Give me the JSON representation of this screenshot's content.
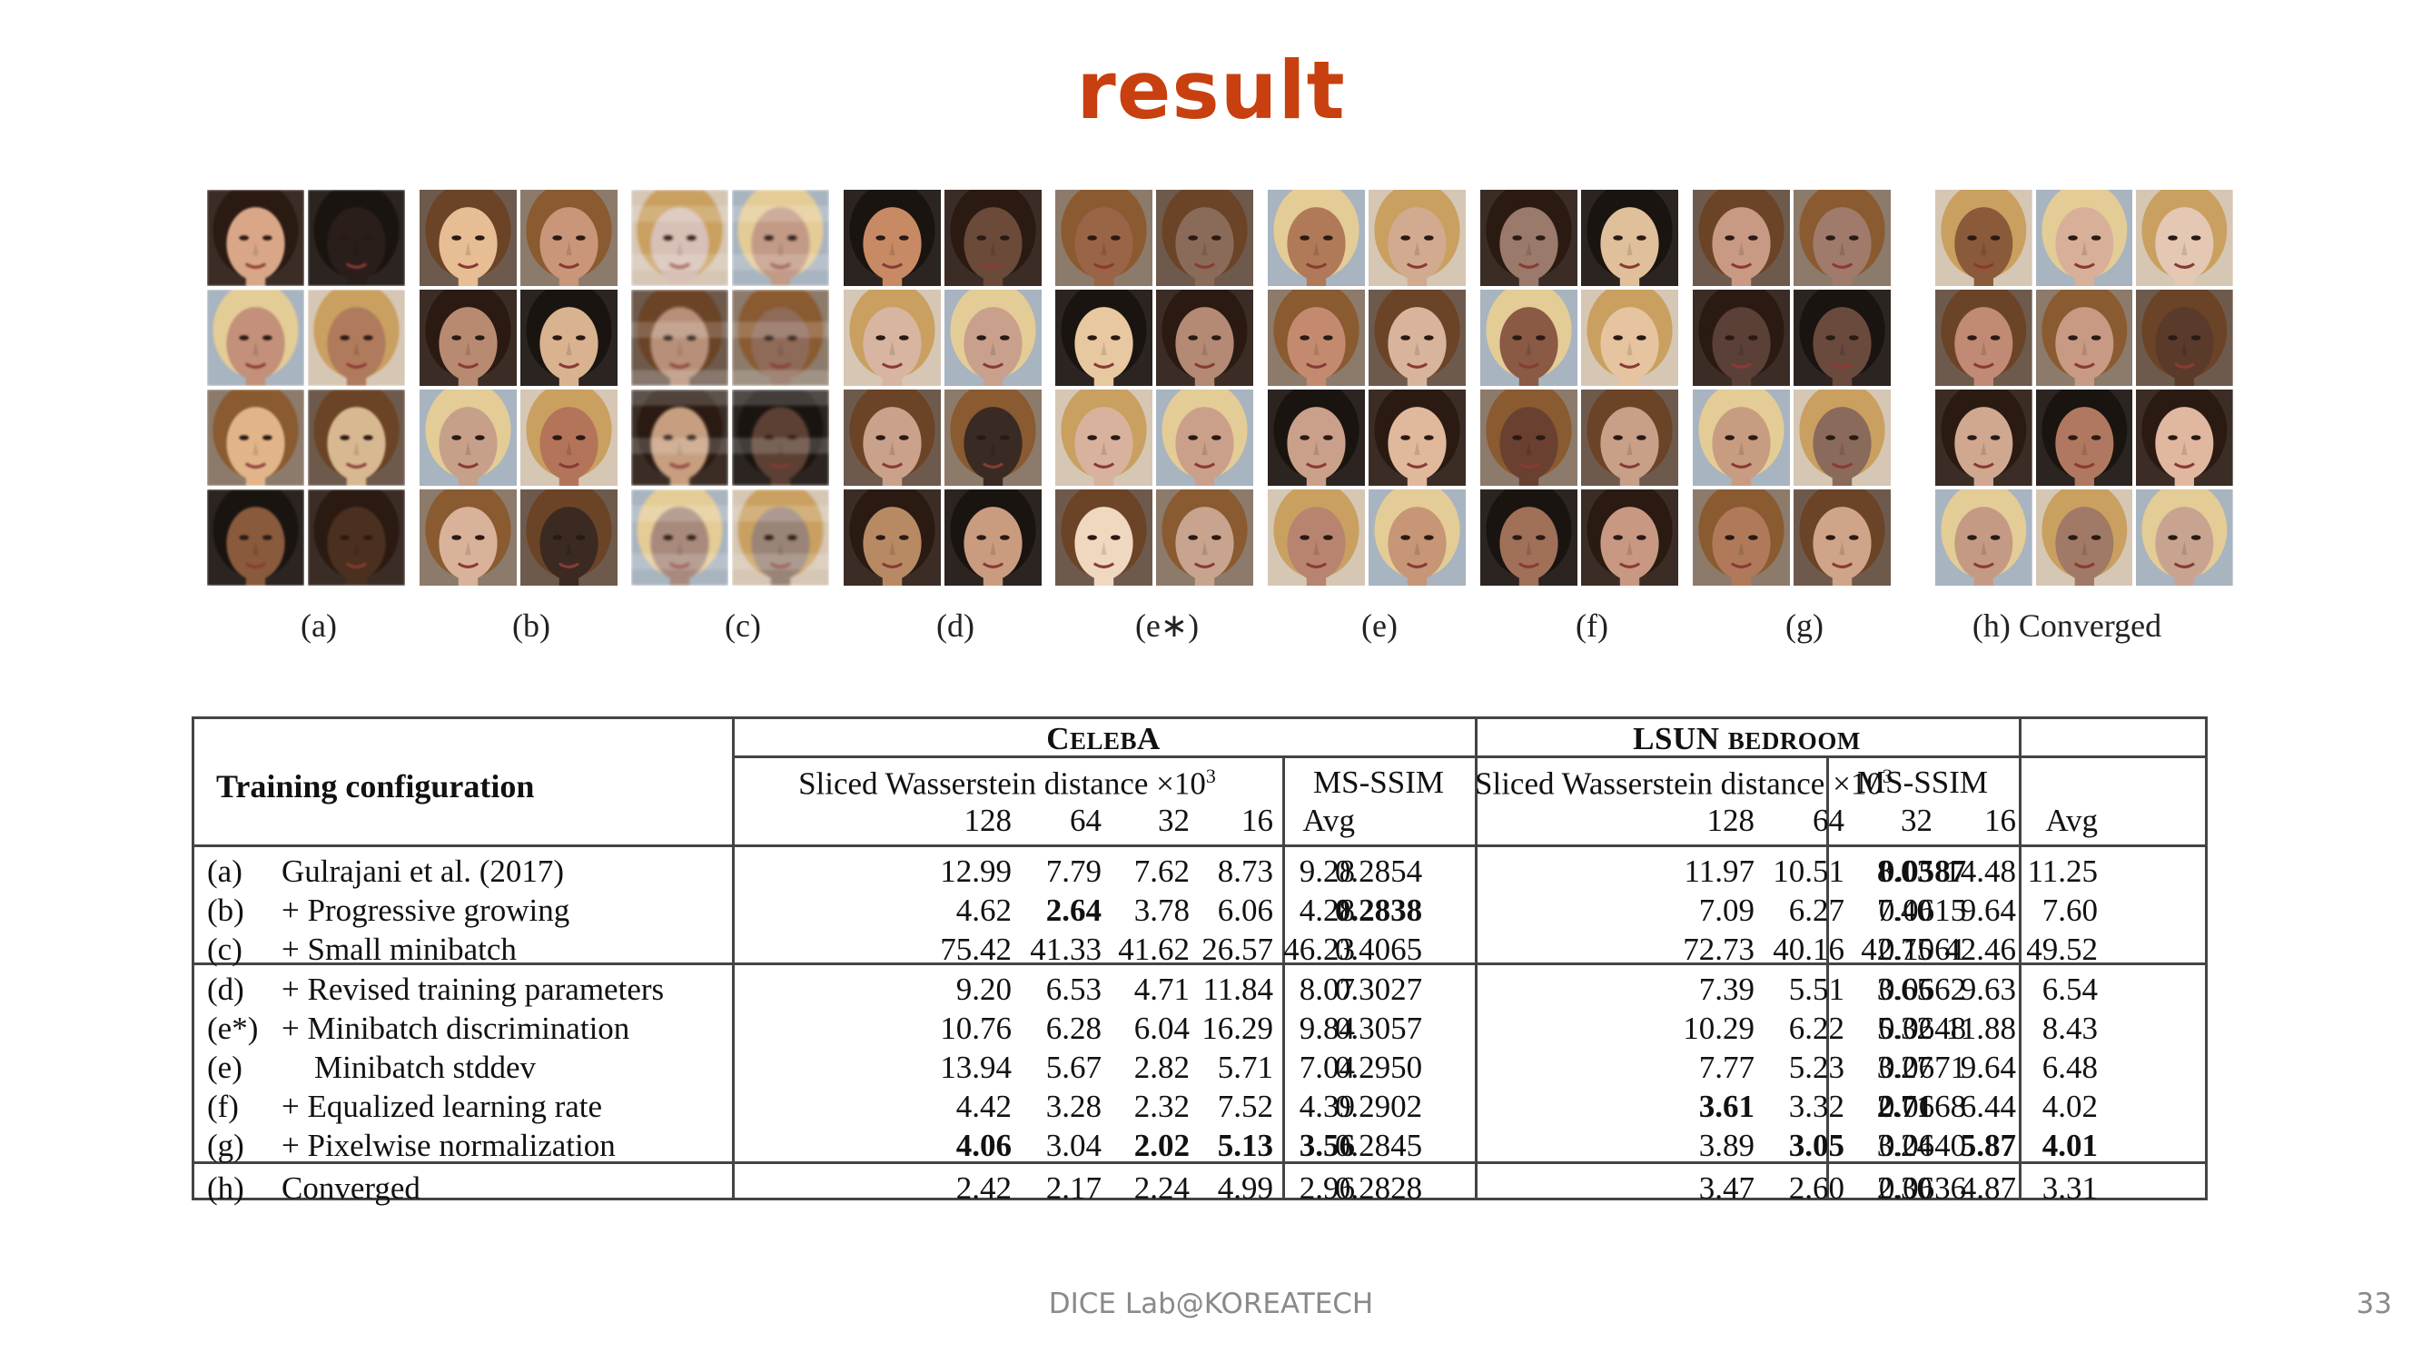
{
  "slide": {
    "title": "result",
    "title_color": "#c8400f",
    "footer": "DICE Lab@KOREATECH",
    "page_number": "33"
  },
  "figure": {
    "panels": [
      {
        "caption": "(a)",
        "faces": [
          [
            "#d9a788",
            "#2a1e1a"
          ],
          [
            "#c39079",
            "#b07b5c"
          ],
          [
            "#e2b48a",
            "#d8b890"
          ],
          [
            "#8a5a3c",
            "#4b3020"
          ]
        ],
        "style": "blur"
      },
      {
        "caption": "(b)",
        "faces": [
          [
            "#e7bd93",
            "#c9967a"
          ],
          [
            "#b98a72",
            "#d9b290"
          ],
          [
            "#c7a08a",
            "#b3745a"
          ],
          [
            "#d9b29a",
            "#3a2a22"
          ]
        ],
        "style": "normal"
      },
      {
        "caption": "(c)",
        "faces": [
          [
            "#d7c0b5",
            "#c29a86"
          ],
          [
            "#b8907a",
            "#8e6a58"
          ],
          [
            "#c79f80",
            "#5c4033"
          ],
          [
            "#a88a7c",
            "#9a8478"
          ]
        ],
        "style": "pixel"
      },
      {
        "caption": "(d)",
        "faces": [
          [
            "#c88a64",
            "#6b4a3a"
          ],
          [
            "#d8b5a0",
            "#c9a08c"
          ],
          [
            "#caa18a",
            "#3a2a24"
          ],
          [
            "#b88a64",
            "#c99c80"
          ]
        ],
        "style": "normal"
      },
      {
        "caption": "(e∗)",
        "faces": [
          [
            "#9a6446",
            "#8a6a58"
          ],
          [
            "#e8c8a0",
            "#b48a74"
          ],
          [
            "#d8b29c",
            "#caa08a"
          ],
          [
            "#f0d8c0",
            "#c8a48e"
          ]
        ],
        "style": "normal"
      },
      {
        "caption": "(e)",
        "faces": [
          [
            "#b07a58",
            "#d2aa90"
          ],
          [
            "#c48a70",
            "#d8b49c"
          ],
          [
            "#caa08a",
            "#e0b89c"
          ],
          [
            "#b88470",
            "#c79676"
          ]
        ],
        "style": "normal"
      },
      {
        "caption": "(f)",
        "faces": [
          [
            "#9a7a6a",
            "#e0c09a"
          ],
          [
            "#8a5a44",
            "#e6c4a0"
          ],
          [
            "#6a4030",
            "#c8a088"
          ],
          [
            "#a07058",
            "#c89882"
          ]
        ],
        "style": "normal"
      },
      {
        "caption": "(g)",
        "faces": [
          [
            "#c89a84",
            "#a07a6a"
          ],
          [
            "#5a4036",
            "#6a4a3c"
          ],
          [
            "#c89c80",
            "#8a6a5a"
          ],
          [
            "#b07a5a",
            "#d0a488"
          ]
        ],
        "style": "normal"
      },
      {
        "caption": "(h) Converged",
        "faces": [
          [
            "#8a5a3a",
            "#d8b09a",
            "#e4c8b4"
          ],
          [
            "#c08a74",
            "#c89a84",
            "#5a3a2a"
          ],
          [
            "#d0a890",
            "#b07860",
            "#e0b8a0"
          ],
          [
            "#c49a84",
            "#a07a66",
            "#c8a490"
          ]
        ],
        "style": "normal"
      }
    ]
  },
  "table": {
    "header": {
      "config_label": "Training configuration",
      "celeba_first": "C",
      "celeba_rest": "ELEB",
      "celeba_last": "A",
      "lsun_first": "LSUN ",
      "lsun_rest": "BEDROOM",
      "swd_label": "Sliced Wasserstein distance ×10",
      "swd_exp": "3",
      "msssim_label": "MS-SSIM",
      "subcols": [
        "128",
        "64",
        "32",
        "16",
        "Avg"
      ]
    },
    "rows": [
      {
        "id": "(a)",
        "name": "Gulrajani et al. (2017)",
        "celeba": [
          "12.99",
          "7.79",
          "7.62",
          "8.73",
          "9.28"
        ],
        "celeba_ms": "0.2854",
        "lsun": [
          "11.97",
          "10.51",
          "8.03",
          "14.48",
          "11.25"
        ],
        "lsun_ms": "0.0587"
      },
      {
        "id": "(b)",
        "name": "+ Progressive growing",
        "celeba": [
          "4.62",
          "2.64",
          "3.78",
          "6.06",
          "4.28"
        ],
        "celeba_ms": "0.2838",
        "lsun": [
          "7.09",
          "6.27",
          "7.40",
          "9.64",
          "7.60"
        ],
        "lsun_ms": "0.0615"
      },
      {
        "id": "(c)",
        "name": "+ Small minibatch",
        "celeba": [
          "75.42",
          "41.33",
          "41.62",
          "26.57",
          "46.23"
        ],
        "celeba_ms": "0.4065",
        "lsun": [
          "72.73",
          "40.16",
          "42.75",
          "42.46",
          "49.52"
        ],
        "lsun_ms": "0.1061"
      },
      {
        "id": "(d)",
        "name": "+ Revised training parameters",
        "celeba": [
          "9.20",
          "6.53",
          "4.71",
          "11.84",
          "8.07"
        ],
        "celeba_ms": "0.3027",
        "lsun": [
          "7.39",
          "5.51",
          "3.65",
          "9.63",
          "6.54"
        ],
        "lsun_ms": "0.0662"
      },
      {
        "id": "(e*)",
        "name": "+ Minibatch discrimination",
        "celeba": [
          "10.76",
          "6.28",
          "6.04",
          "16.29",
          "9.84"
        ],
        "celeba_ms": "0.3057",
        "lsun": [
          "10.29",
          "6.22",
          "5.32",
          "11.88",
          "8.43"
        ],
        "lsun_ms": "0.0648"
      },
      {
        "id": "(e)",
        "name": "Minibatch stddev",
        "celeba": [
          "13.94",
          "5.67",
          "2.82",
          "5.71",
          "7.04"
        ],
        "celeba_ms": "0.2950",
        "lsun": [
          "7.77",
          "5.23",
          "3.27",
          "9.64",
          "6.48"
        ],
        "lsun_ms": "0.0671"
      },
      {
        "id": "(f)",
        "name": "+ Equalized learning rate",
        "celeba": [
          "4.42",
          "3.28",
          "2.32",
          "7.52",
          "4.39"
        ],
        "celeba_ms": "0.2902",
        "lsun": [
          "3.61",
          "3.32",
          "2.71",
          "6.44",
          "4.02"
        ],
        "lsun_ms": "0.0668"
      },
      {
        "id": "(g)",
        "name": "+ Pixelwise normalization",
        "celeba": [
          "4.06",
          "3.04",
          "2.02",
          "5.13",
          "3.56"
        ],
        "celeba_ms": "0.2845",
        "lsun": [
          "3.89",
          "3.05",
          "3.24",
          "5.87",
          "4.01"
        ],
        "lsun_ms": "0.0640"
      },
      {
        "id": "(h)",
        "name": "Converged",
        "celeba": [
          "2.42",
          "2.17",
          "2.24",
          "4.99",
          "2.96"
        ],
        "celeba_ms": "0.2828",
        "lsun": [
          "3.47",
          "2.60",
          "2.30",
          "4.87",
          "3.31"
        ],
        "lsun_ms": "0.0636"
      }
    ],
    "bold_cells": [
      "1.celeba.1",
      "1.celeba_ms",
      "0.lsun_ms",
      "6.lsun.0",
      "6.lsun.2",
      "7.celeba.0",
      "7.celeba.2",
      "7.celeba.3",
      "7.celeba.4",
      "7.lsun.1",
      "7.lsun.3",
      "7.lsun.4"
    ]
  }
}
